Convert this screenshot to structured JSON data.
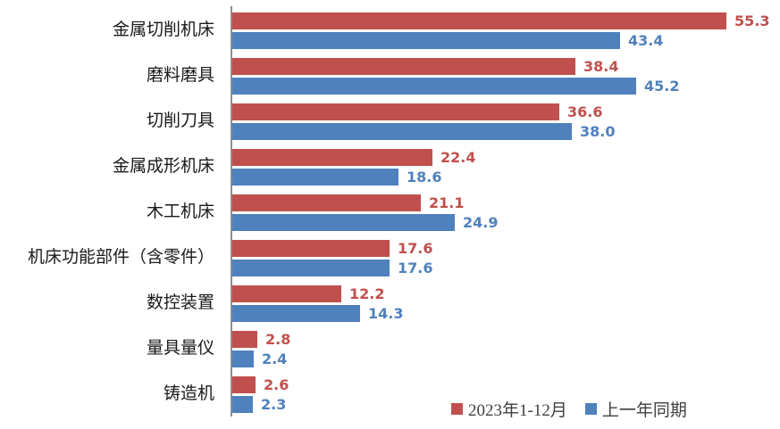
{
  "chart_data": {
    "type": "bar",
    "orientation": "horizontal",
    "title": "",
    "xlabel": "",
    "ylabel": "",
    "categories": [
      "金属切削机床",
      "磨料磨具",
      "切削刀具",
      "金属成形机床",
      "木工机床",
      "机床功能部件（含零件）",
      "数控装置",
      "量具量仪",
      "铸造机"
    ],
    "series": [
      {
        "name": "2023年1-12月",
        "color": "#C0504D",
        "values": [
          55.3,
          38.4,
          36.6,
          22.4,
          21.1,
          17.6,
          12.2,
          2.8,
          2.6
        ],
        "labels": [
          "55.3",
          "38.4",
          "36.6",
          "22.4",
          "21.1",
          "17.6",
          "12.2",
          "2.8",
          "2.6"
        ]
      },
      {
        "name": "上一年同期",
        "color": "#4F81BD",
        "values": [
          43.4,
          45.2,
          38.0,
          18.6,
          24.9,
          17.6,
          14.3,
          2.4,
          2.3
        ],
        "labels": [
          "43.4",
          "45.2",
          "38.0",
          "18.6",
          "24.9",
          "17.6",
          "14.3",
          "2.4",
          "2.3"
        ]
      }
    ],
    "xlim": [
      0,
      60
    ],
    "grid": false,
    "value_labels": true,
    "legend_position": "bottom-right",
    "axis_color": "#8C8C8C",
    "background": "#FFFFFF"
  }
}
